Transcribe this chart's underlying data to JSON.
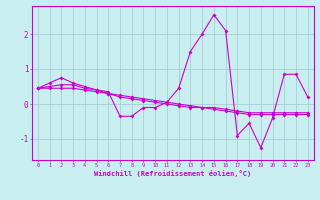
{
  "xlabel": "Windchill (Refroidissement éolien,°C)",
  "background_color": "#c8eef0",
  "grid_color": "#a0c8d0",
  "line_color": "#cc00cc",
  "xlim": [
    -0.5,
    23.5
  ],
  "ylim": [
    -1.6,
    2.8
  ],
  "yticks": [
    -1,
    0,
    1,
    2
  ],
  "xticks": [
    0,
    1,
    2,
    3,
    4,
    5,
    6,
    7,
    8,
    9,
    10,
    11,
    12,
    13,
    14,
    15,
    16,
    17,
    18,
    19,
    20,
    21,
    22,
    23
  ],
  "series": [
    [
      0.45,
      0.6,
      0.75,
      0.6,
      0.5,
      0.4,
      0.35,
      -0.35,
      -0.35,
      -0.1,
      -0.1,
      0.05,
      0.45,
      1.5,
      2.0,
      2.55,
      2.1,
      -0.9,
      -0.55,
      -1.25,
      -0.4,
      0.85,
      0.85,
      0.2
    ],
    [
      0.45,
      0.5,
      0.55,
      0.55,
      0.45,
      0.4,
      0.3,
      0.2,
      0.15,
      0.1,
      0.05,
      0.0,
      -0.05,
      -0.1,
      -0.1,
      -0.15,
      -0.2,
      -0.25,
      -0.3,
      -0.3,
      -0.3,
      -0.3,
      -0.3,
      -0.3
    ],
    [
      0.45,
      0.45,
      0.45,
      0.45,
      0.4,
      0.35,
      0.3,
      0.25,
      0.2,
      0.15,
      0.1,
      0.05,
      0.0,
      -0.05,
      -0.1,
      -0.1,
      -0.15,
      -0.2,
      -0.25,
      -0.25,
      -0.25,
      -0.25,
      -0.25,
      -0.25
    ]
  ]
}
